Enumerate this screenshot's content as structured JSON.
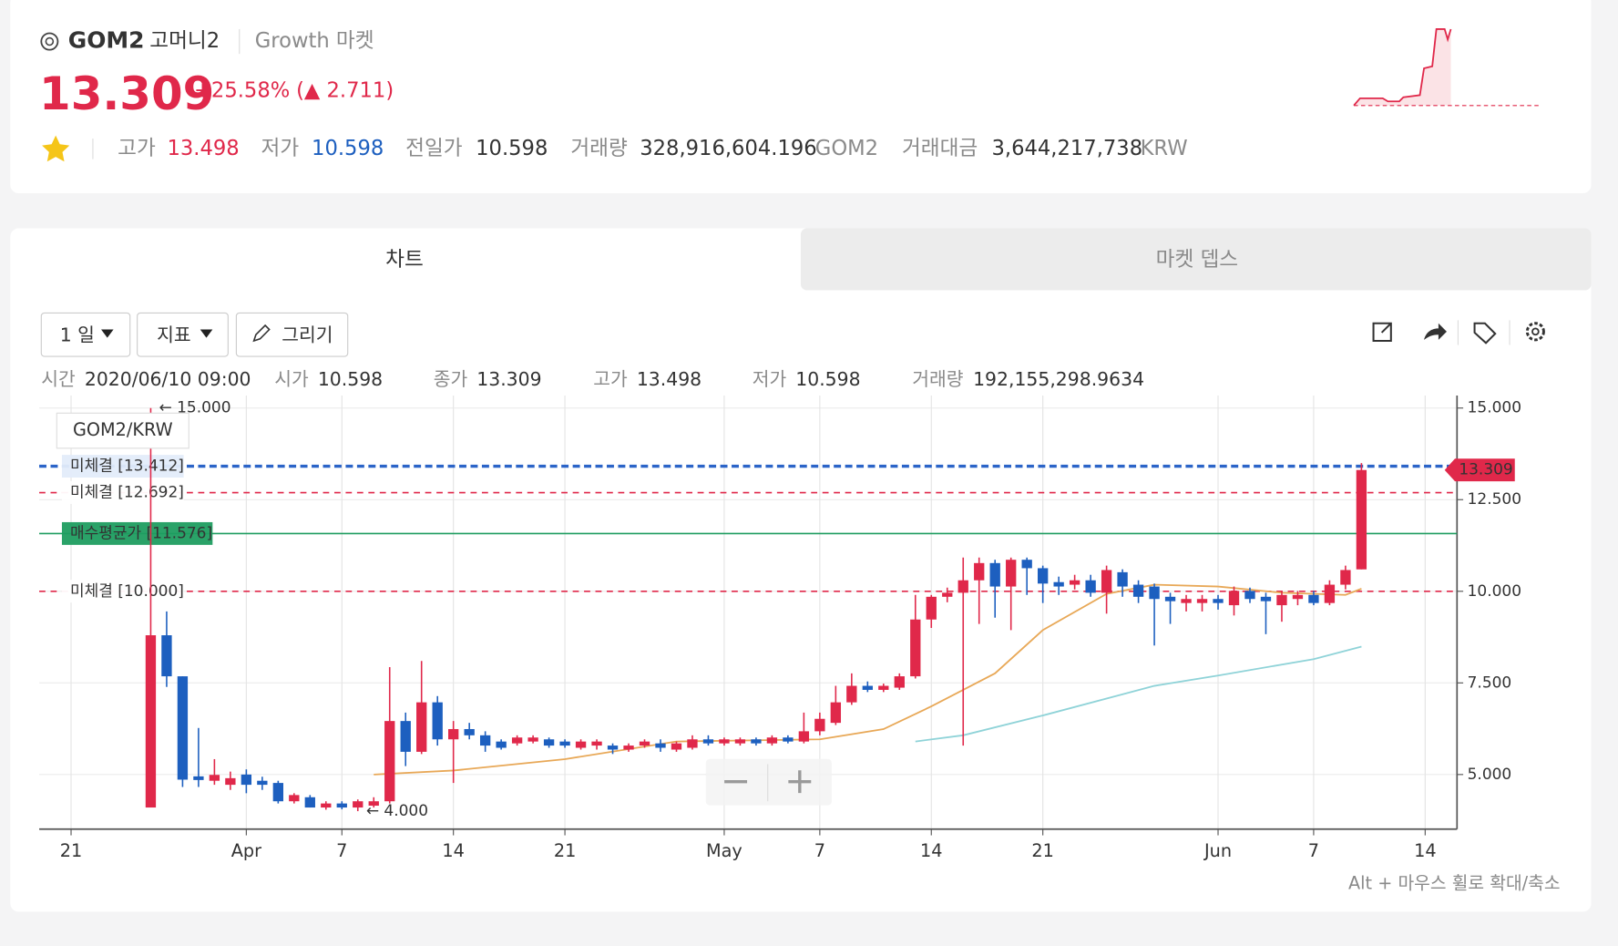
{
  "header": {
    "symbol": "GOM2",
    "name": "고머니2",
    "market": "Growth 마켓",
    "price": "13.309",
    "change_pct": "+25.58%",
    "change": "(▲ 2.711)",
    "stats": [
      {
        "label": "고가",
        "value": "13.498"
      },
      {
        "label": "저가",
        "value": "10.598"
      },
      {
        "label": "전일가",
        "value": "10.598"
      },
      {
        "label": "거래량",
        "value": "328,916,604.196",
        "unit": "GOM2"
      },
      {
        "label": "거래대금",
        "value": "3,644,217,738",
        "unit": "KRW"
      }
    ]
  },
  "tabs": [
    "차트",
    "마켓 뎁스"
  ],
  "toolbar": [
    "1 일",
    "지표",
    "그리기"
  ],
  "info": [
    {
      "label": "시간",
      "value": "2020/06/10 09:00"
    },
    {
      "label": "시가",
      "value": "10.598"
    },
    {
      "label": "종가",
      "value": "13.309"
    },
    {
      "label": "고가",
      "value": "13.498"
    },
    {
      "label": "저가",
      "value": "10.598"
    },
    {
      "label": "거래량",
      "value": "192,155,298.9634"
    }
  ],
  "hint": "Alt + 마우스 휠로 확대/축소",
  "chart_data": {
    "type": "candlestick",
    "legend": "GOM2/KRW",
    "up_color": "#e0284a",
    "down_color": "#1d5fbf",
    "x": [
      "2020-03-26",
      "2020-03-27",
      "2020-03-28",
      "2020-03-29",
      "2020-03-30",
      "2020-03-31",
      "2020-04-01",
      "2020-04-02",
      "2020-04-03",
      "2020-04-04",
      "2020-04-05",
      "2020-04-06",
      "2020-04-07",
      "2020-04-08",
      "2020-04-09",
      "2020-04-10",
      "2020-04-11",
      "2020-04-12",
      "2020-04-13",
      "2020-04-14",
      "2020-04-15",
      "2020-04-16",
      "2020-04-17",
      "2020-04-18",
      "2020-04-19",
      "2020-04-20",
      "2020-04-21",
      "2020-04-22",
      "2020-04-23",
      "2020-04-24",
      "2020-04-25",
      "2020-04-26",
      "2020-04-27",
      "2020-04-28",
      "2020-04-29",
      "2020-04-30",
      "2020-05-01",
      "2020-05-02",
      "2020-05-03",
      "2020-05-04",
      "2020-05-05",
      "2020-05-06",
      "2020-05-07",
      "2020-05-08",
      "2020-05-09",
      "2020-05-10",
      "2020-05-11",
      "2020-05-12",
      "2020-05-13",
      "2020-05-14",
      "2020-05-15",
      "2020-05-16",
      "2020-05-17",
      "2020-05-18",
      "2020-05-19",
      "2020-05-20",
      "2020-05-21",
      "2020-05-22",
      "2020-05-23",
      "2020-05-24",
      "2020-05-25",
      "2020-05-26",
      "2020-05-27",
      "2020-05-28",
      "2020-05-29",
      "2020-05-30",
      "2020-05-31",
      "2020-06-01",
      "2020-06-02",
      "2020-06-03",
      "2020-06-04",
      "2020-06-05",
      "2020-06-06",
      "2020-06-07",
      "2020-06-08",
      "2020-06-09",
      "2020-06-10"
    ],
    "open": [
      4.1,
      8.8,
      7.68,
      4.95,
      4.83,
      4.72,
      5.0,
      4.83,
      4.77,
      4.27,
      4.38,
      4.1,
      4.21,
      4.1,
      4.15,
      4.27,
      6.46,
      5.62,
      6.97,
      5.96,
      6.24,
      6.07,
      5.9,
      5.85,
      5.9,
      5.96,
      5.9,
      5.73,
      5.79,
      5.79,
      5.68,
      5.79,
      5.85,
      5.68,
      5.73,
      5.96,
      5.85,
      5.85,
      5.96,
      5.85,
      6.01,
      5.9,
      6.18,
      6.41,
      6.97,
      7.42,
      7.31,
      7.37,
      7.68,
      9.23,
      9.85,
      9.96,
      10.3,
      10.77,
      10.13,
      10.86,
      10.63,
      10.25,
      10.18,
      10.3,
      9.96,
      10.52,
      10.18,
      10.13,
      9.85,
      9.68,
      9.68,
      9.79,
      9.62,
      10.01,
      9.85,
      9.62,
      9.79,
      9.9,
      9.68,
      10.18,
      10.598
    ],
    "high": [
      15.0,
      9.45,
      7.68,
      6.27,
      5.42,
      5.08,
      5.14,
      4.94,
      4.83,
      4.49,
      4.44,
      4.27,
      4.27,
      4.32,
      4.38,
      7.93,
      6.69,
      8.1,
      7.14,
      6.46,
      6.41,
      6.18,
      5.96,
      6.07,
      6.07,
      6.01,
      5.96,
      5.96,
      5.96,
      5.85,
      5.85,
      5.96,
      5.96,
      5.9,
      6.07,
      6.07,
      6.01,
      6.01,
      6.01,
      6.07,
      6.07,
      6.69,
      6.69,
      7.42,
      7.76,
      7.54,
      7.48,
      7.76,
      9.9,
      9.9,
      10.1,
      10.92,
      10.92,
      10.86,
      10.92,
      10.92,
      10.7,
      10.4,
      10.45,
      10.45,
      10.7,
      10.6,
      10.3,
      10.21,
      9.96,
      9.9,
      9.9,
      9.9,
      10.13,
      10.1,
      9.96,
      10.01,
      10.01,
      10.01,
      10.3,
      10.7,
      13.498
    ],
    "low": [
      4.1,
      7.39,
      4.66,
      4.66,
      4.72,
      4.58,
      4.49,
      4.58,
      4.21,
      4.21,
      4.1,
      4.04,
      4.05,
      4.0,
      4.1,
      4.21,
      5.23,
      5.56,
      5.79,
      4.77,
      5.96,
      5.62,
      5.68,
      5.79,
      5.85,
      5.73,
      5.73,
      5.68,
      5.68,
      5.56,
      5.62,
      5.73,
      5.62,
      5.62,
      5.68,
      5.79,
      5.79,
      5.79,
      5.79,
      5.79,
      5.85,
      5.85,
      6.07,
      6.35,
      6.9,
      7.25,
      7.25,
      7.31,
      7.62,
      9.0,
      9.7,
      5.79,
      9.11,
      9.28,
      8.94,
      9.9,
      9.68,
      9.9,
      10.05,
      9.85,
      9.39,
      9.85,
      9.68,
      8.52,
      9.11,
      9.45,
      9.45,
      9.5,
      9.34,
      9.68,
      8.83,
      9.17,
      9.62,
      9.62,
      9.62,
      10.05,
      10.598
    ],
    "close": [
      8.8,
      7.68,
      4.86,
      4.85,
      4.99,
      4.9,
      4.72,
      4.72,
      4.27,
      4.44,
      4.1,
      4.21,
      4.1,
      4.27,
      4.27,
      6.46,
      5.62,
      6.97,
      5.96,
      6.24,
      6.07,
      5.79,
      5.73,
      6.01,
      6.01,
      5.79,
      5.79,
      5.9,
      5.9,
      5.68,
      5.79,
      5.9,
      5.73,
      5.85,
      5.96,
      5.85,
      5.96,
      5.96,
      5.85,
      6.01,
      5.9,
      6.18,
      6.52,
      6.97,
      7.42,
      7.31,
      7.42,
      7.68,
      9.23,
      9.85,
      9.96,
      10.3,
      10.77,
      10.13,
      10.86,
      10.63,
      10.21,
      10.13,
      10.3,
      9.96,
      10.58,
      10.13,
      9.85,
      9.79,
      9.73,
      9.79,
      9.79,
      9.68,
      10.01,
      9.79,
      9.73,
      9.9,
      9.9,
      9.68,
      10.18,
      10.58,
      13.309
    ],
    "moving_averages": [
      {
        "color": "#e8a857",
        "x": [
          "2020-04-09",
          "2020-04-14",
          "2020-04-21",
          "2020-04-28",
          "2020-05-07",
          "2020-05-11",
          "2020-05-14",
          "2020-05-18",
          "2020-05-21",
          "2020-05-25",
          "2020-05-28",
          "2020-06-01",
          "2020-06-05",
          "2020-06-09",
          "2020-06-10"
        ],
        "values": [
          5.0,
          5.11,
          5.42,
          5.9,
          5.96,
          6.24,
          6.86,
          7.76,
          8.94,
          9.93,
          10.18,
          10.13,
          9.96,
          9.9,
          10.07
        ]
      },
      {
        "color": "#8fd3d8",
        "x": [
          "2020-05-13",
          "2020-05-16",
          "2020-05-21",
          "2020-05-28",
          "2020-06-01",
          "2020-06-07",
          "2020-06-10"
        ],
        "values": [
          5.9,
          6.07,
          6.61,
          7.42,
          7.7,
          8.15,
          8.49
        ]
      }
    ],
    "order_lines": [
      {
        "value": 13.412,
        "label": "미체결 [13.412]",
        "color": "#2b64c8",
        "style": "dashed"
      },
      {
        "value": 12.692,
        "label": "미체결 [12.692]",
        "color": "#e0284a",
        "style": "dashed"
      },
      {
        "value": 11.576,
        "label": "매수평균가 [11.576]",
        "color": "#1f9d60",
        "style": "solid"
      },
      {
        "value": 10.0,
        "label": "미체결 [10.000]",
        "color": "#e0284a",
        "style": "dashed"
      }
    ],
    "markers": [
      {
        "x": "2020-03-26",
        "value": 15.0,
        "label": "← 15.000"
      },
      {
        "x": "2020-04-08",
        "value": 4.0,
        "label": "← 4.000"
      }
    ],
    "last_price": 13.309,
    "xlim": [
      "2020-03-19",
      "2020-06-16"
    ],
    "xticks": [
      {
        "value": "2020-03-21",
        "label": "21"
      },
      {
        "value": "2020-04-01",
        "label": "Apr"
      },
      {
        "value": "2020-04-07",
        "label": "7"
      },
      {
        "value": "2020-04-14",
        "label": "14"
      },
      {
        "value": "2020-04-21",
        "label": "21"
      },
      {
        "value": "2020-05-01",
        "label": "May"
      },
      {
        "value": "2020-05-07",
        "label": "7"
      },
      {
        "value": "2020-05-14",
        "label": "14"
      },
      {
        "value": "2020-05-21",
        "label": "21"
      },
      {
        "value": "2020-06-01",
        "label": "Jun"
      },
      {
        "value": "2020-06-07",
        "label": "7"
      },
      {
        "value": "2020-06-14",
        "label": "14"
      }
    ],
    "ylim": [
      3.51,
      15.34
    ],
    "yticks": [
      {
        "value": 5,
        "label": "5.000"
      },
      {
        "value": 7.5,
        "label": "7.500"
      },
      {
        "value": 10,
        "label": "10.000"
      },
      {
        "value": 12.5,
        "label": "12.500"
      },
      {
        "value": 15,
        "label": "15.000"
      }
    ],
    "grid": true
  }
}
